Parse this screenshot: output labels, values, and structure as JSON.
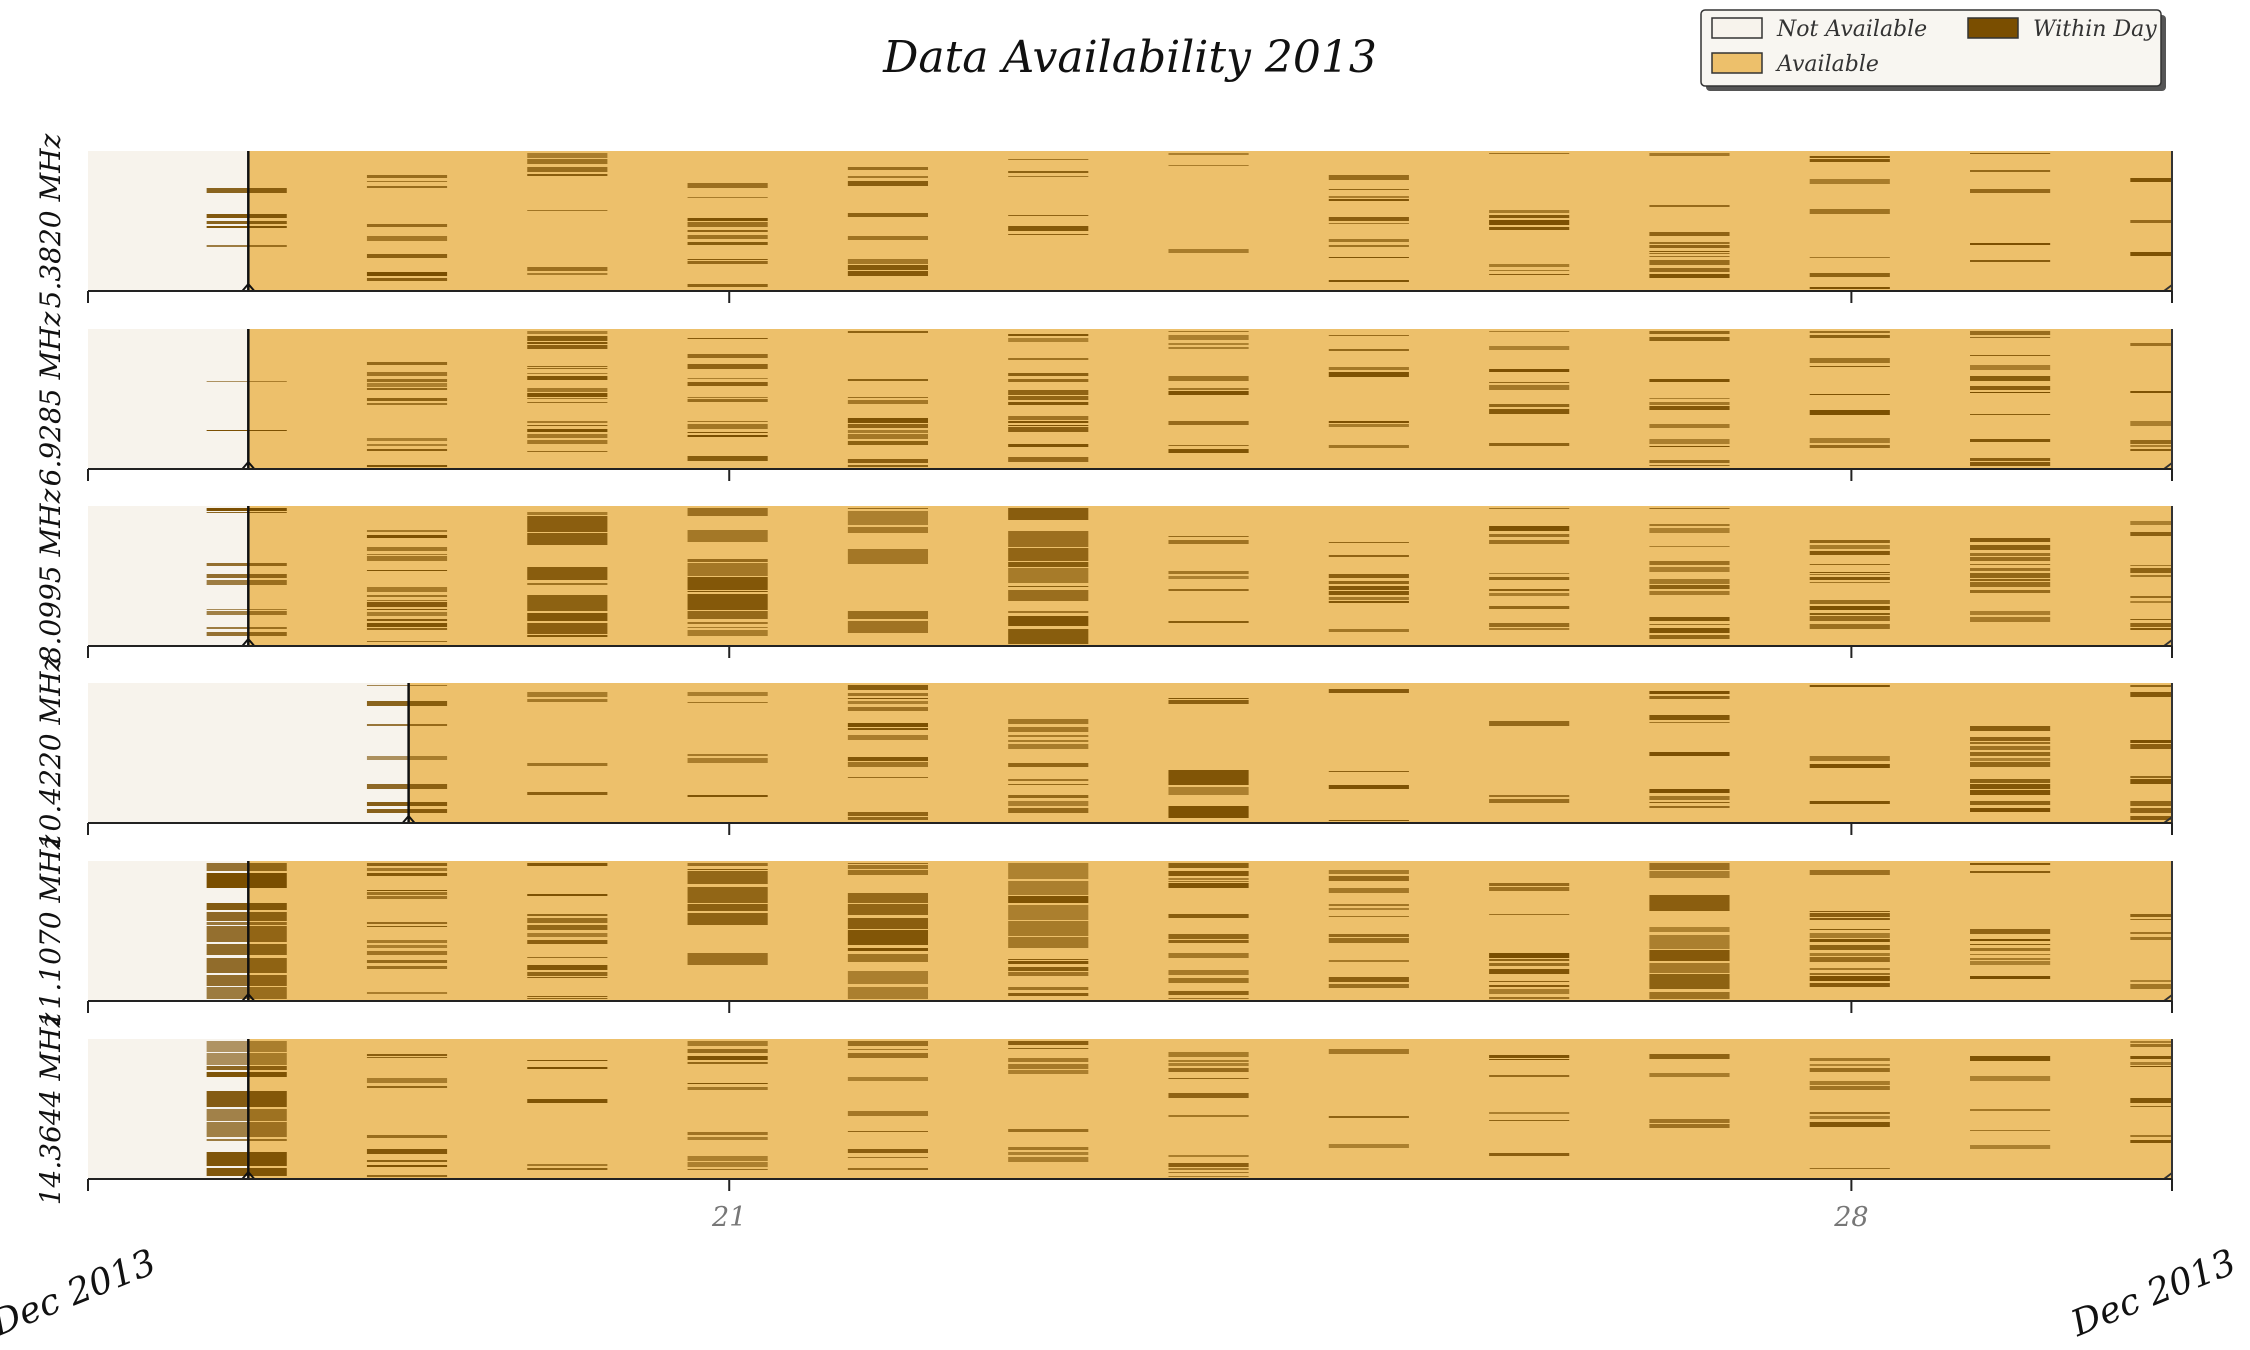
{
  "chart_data": {
    "type": "heatmap",
    "title": "Data Availability 2013",
    "x_start": "2013-12-17",
    "x_end": "2013-12-30",
    "x_ticks": [
      "21",
      "28"
    ],
    "x_tick_dates": [
      "2013-12-21",
      "2013-12-28"
    ],
    "corner_labels": [
      "Dec 2013",
      "Dec 2013"
    ],
    "legend": {
      "placement": "top-right",
      "items": [
        {
          "label": "Not Available",
          "color": "#f7f3ec"
        },
        {
          "label": "Available",
          "color": "#edc06b"
        },
        {
          "label": "Within Day",
          "color": "#7a4e00"
        }
      ]
    },
    "colors": {
      "not_available": "#f7f3ec",
      "available": "#edc06b",
      "within_day": "#7a4e00",
      "axis": "#222222"
    },
    "series": [
      {
        "name": "5.3820 MHz",
        "available_from": "2013-12-18T00:00",
        "activity_level": [
          0.3,
          0.5,
          0.55,
          0.45,
          0.55,
          0.4,
          0.4,
          0.35,
          0.45,
          0.6,
          0.35,
          0.4,
          0.15
        ]
      },
      {
        "name": "6.9285 MHz",
        "available_from": "2013-12-18T00:00",
        "activity_level": [
          0.5,
          0.5,
          0.6,
          0.6,
          0.55,
          0.6,
          0.55,
          0.45,
          0.35,
          0.45,
          0.45,
          0.5,
          0.6
        ]
      },
      {
        "name": "8.0995 MHz",
        "available_from": "2013-12-18T00:00",
        "activity_level": [
          0.6,
          0.6,
          0.7,
          0.75,
          0.7,
          0.8,
          0.25,
          0.55,
          0.6,
          0.65,
          0.5,
          0.6,
          0.55
        ]
      },
      {
        "name": "10.4220 MHz",
        "available_from": "2013-12-19T00:00",
        "activity_level": [
          0.0,
          0.35,
          0.3,
          0.5,
          0.65,
          0.6,
          0.7,
          0.3,
          0.35,
          0.45,
          0.35,
          0.5,
          0.45
        ]
      },
      {
        "name": "11.1070 MHz",
        "available_from": "2013-12-18T00:00",
        "activity_level": [
          0.85,
          0.55,
          0.55,
          0.7,
          0.8,
          0.7,
          0.65,
          0.5,
          0.6,
          0.7,
          0.6,
          0.5,
          0.45
        ]
      },
      {
        "name": "14.3644 MHz",
        "available_from": "2013-12-18T00:00",
        "activity_level": [
          0.7,
          0.45,
          0.45,
          0.5,
          0.5,
          0.45,
          0.45,
          0.35,
          0.5,
          0.45,
          0.4,
          0.35,
          0.4
        ]
      }
    ]
  }
}
